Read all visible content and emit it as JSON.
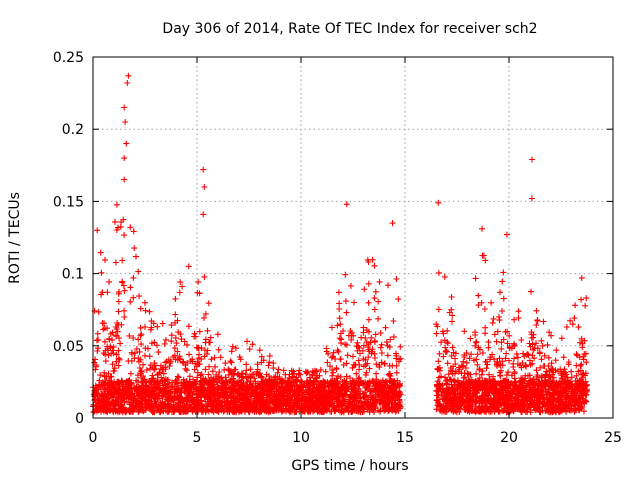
{
  "chart_data": {
    "type": "scatter",
    "title": "Day 306 of 2014, Rate Of TEC Index for receiver sch2",
    "xlabel": "GPS time / hours",
    "ylabel": "ROTI / TECUs",
    "xlim": [
      0,
      25
    ],
    "ylim": [
      0,
      0.25
    ],
    "x_ticks": [
      "0",
      "5",
      "10",
      "15",
      "20",
      "25"
    ],
    "y_ticks": [
      "0",
      "0.05",
      "0.1",
      "0.15",
      "0.2",
      "0.25"
    ],
    "grid": true,
    "marker": "+",
    "color": "#ff0000",
    "series": [
      {
        "name": "sch2",
        "note": "dense cloud of ~10000 points, baseline ~0.005-0.03 TECUs; no data between ~14.8 h and ~16.5 h",
        "notable_points": [
          {
            "x": 1.7,
            "y": 0.237
          },
          {
            "x": 1.65,
            "y": 0.232
          },
          {
            "x": 1.5,
            "y": 0.215
          },
          {
            "x": 1.55,
            "y": 0.205
          },
          {
            "x": 1.6,
            "y": 0.19
          },
          {
            "x": 1.5,
            "y": 0.18
          },
          {
            "x": 5.3,
            "y": 0.172
          },
          {
            "x": 5.35,
            "y": 0.16
          },
          {
            "x": 5.3,
            "y": 0.141
          },
          {
            "x": 21.1,
            "y": 0.179
          },
          {
            "x": 21.1,
            "y": 0.152
          },
          {
            "x": 16.6,
            "y": 0.149
          },
          {
            "x": 12.2,
            "y": 0.148
          },
          {
            "x": 14.4,
            "y": 0.135
          },
          {
            "x": 18.7,
            "y": 0.131
          },
          {
            "x": 19.9,
            "y": 0.127
          },
          {
            "x": 0.2,
            "y": 0.13
          },
          {
            "x": 4.6,
            "y": 0.105
          },
          {
            "x": 23.5,
            "y": 0.097
          }
        ],
        "envelope": [
          {
            "x": 0.0,
            "y": 0.06
          },
          {
            "x": 0.3,
            "y": 0.12
          },
          {
            "x": 0.8,
            "y": 0.11
          },
          {
            "x": 1.2,
            "y": 0.15
          },
          {
            "x": 1.6,
            "y": 0.2
          },
          {
            "x": 2.0,
            "y": 0.13
          },
          {
            "x": 2.5,
            "y": 0.09
          },
          {
            "x": 3.0,
            "y": 0.06
          },
          {
            "x": 3.6,
            "y": 0.07
          },
          {
            "x": 4.3,
            "y": 0.1
          },
          {
            "x": 4.8,
            "y": 0.07
          },
          {
            "x": 5.3,
            "y": 0.11
          },
          {
            "x": 5.7,
            "y": 0.07
          },
          {
            "x": 6.2,
            "y": 0.045
          },
          {
            "x": 7.0,
            "y": 0.05
          },
          {
            "x": 7.8,
            "y": 0.055
          },
          {
            "x": 8.5,
            "y": 0.04
          },
          {
            "x": 9.3,
            "y": 0.03
          },
          {
            "x": 10.3,
            "y": 0.03
          },
          {
            "x": 11.0,
            "y": 0.04
          },
          {
            "x": 11.5,
            "y": 0.07
          },
          {
            "x": 12.2,
            "y": 0.12
          },
          {
            "x": 12.8,
            "y": 0.09
          },
          {
            "x": 13.3,
            "y": 0.12
          },
          {
            "x": 14.0,
            "y": 0.09
          },
          {
            "x": 14.5,
            "y": 0.11
          },
          {
            "x": 14.75,
            "y": 0.07
          },
          {
            "x": 16.6,
            "y": 0.11
          },
          {
            "x": 17.0,
            "y": 0.09
          },
          {
            "x": 17.5,
            "y": 0.07
          },
          {
            "x": 18.0,
            "y": 0.08
          },
          {
            "x": 18.7,
            "y": 0.12
          },
          {
            "x": 19.3,
            "y": 0.07
          },
          {
            "x": 19.9,
            "y": 0.11
          },
          {
            "x": 20.5,
            "y": 0.07
          },
          {
            "x": 21.2,
            "y": 0.1
          },
          {
            "x": 21.8,
            "y": 0.06
          },
          {
            "x": 22.5,
            "y": 0.05
          },
          {
            "x": 23.0,
            "y": 0.07
          },
          {
            "x": 23.8,
            "y": 0.09
          }
        ],
        "gaps": [
          [
            14.8,
            16.5
          ]
        ]
      }
    ]
  }
}
